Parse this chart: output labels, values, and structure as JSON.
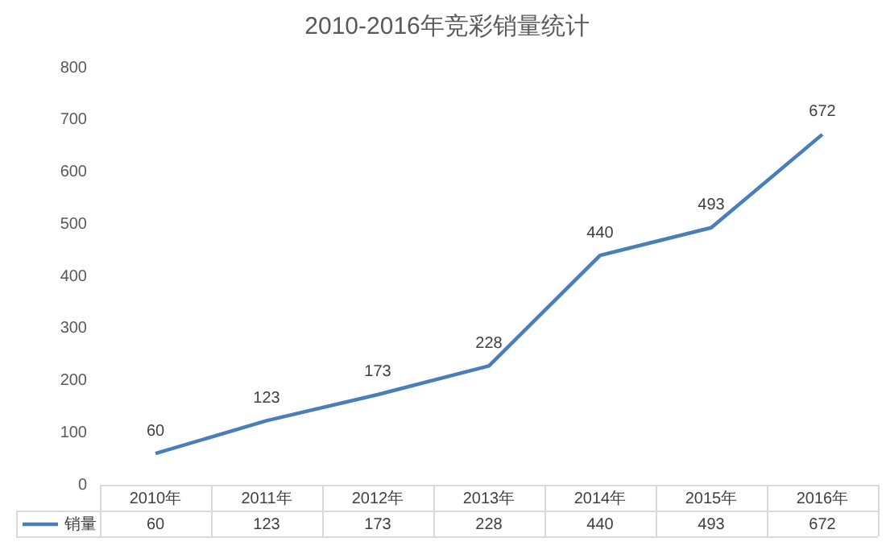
{
  "chart_data": {
    "type": "line",
    "title": "2010-2016年竞彩销量统计",
    "categories": [
      "2010年",
      "2011年",
      "2012年",
      "2013年",
      "2014年",
      "2015年",
      "2016年"
    ],
    "series": [
      {
        "name": "销量",
        "color": "#4a7ebb",
        "values": [
          60,
          123,
          173,
          228,
          440,
          493,
          672
        ]
      }
    ],
    "annotations": [
      "60",
      "123",
      "173",
      "228",
      "440",
      "493",
      "672"
    ],
    "ylim": [
      0,
      800
    ],
    "yticks": [
      0,
      100,
      200,
      300,
      400,
      500,
      600,
      700,
      800
    ],
    "grid": false,
    "legend": "bottom left",
    "marker": "none",
    "line_style": "solid",
    "data_labels": true
  }
}
